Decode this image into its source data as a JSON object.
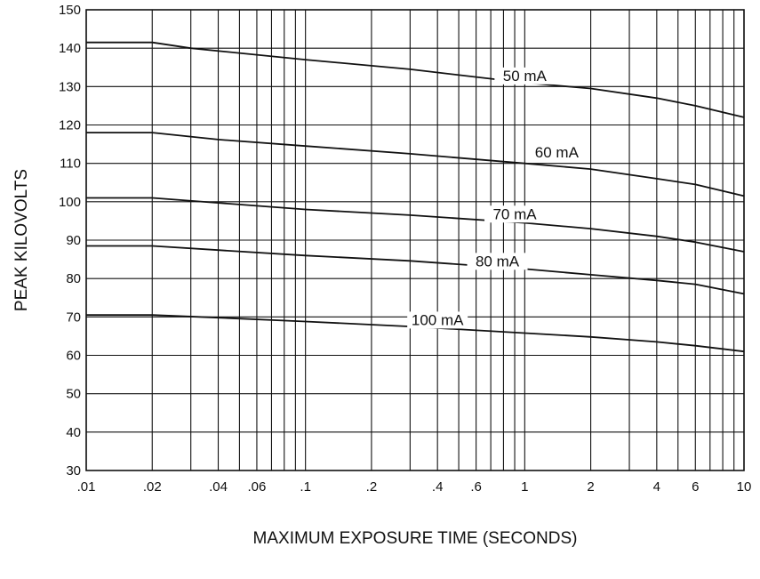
{
  "chart_data": {
    "type": "line",
    "title": "",
    "xlabel": "MAXIMUM EXPOSURE TIME (SECONDS)",
    "ylabel": "PEAK KILOVOLTS",
    "x_scale": "log",
    "xlim": [
      0.01,
      10
    ],
    "ylim": [
      30,
      150
    ],
    "grid": true,
    "legend": "inline labels on curves",
    "colors": {
      "line": "#111111",
      "grid": "#111111",
      "background": "#ffffff"
    },
    "x_ticks": [
      {
        "value": 0.01,
        "label": ".01"
      },
      {
        "value": 0.02,
        "label": ".02"
      },
      {
        "value": 0.04,
        "label": ".04"
      },
      {
        "value": 0.06,
        "label": ".06"
      },
      {
        "value": 0.1,
        "label": ".1"
      },
      {
        "value": 0.2,
        "label": ".2"
      },
      {
        "value": 0.4,
        "label": ".4"
      },
      {
        "value": 0.6,
        "label": ".6"
      },
      {
        "value": 1,
        "label": "1"
      },
      {
        "value": 2,
        "label": "2"
      },
      {
        "value": 4,
        "label": "4"
      },
      {
        "value": 6,
        "label": "6"
      },
      {
        "value": 10,
        "label": "10"
      }
    ],
    "x_gridlines": [
      0.01,
      0.02,
      0.03,
      0.04,
      0.05,
      0.06,
      0.07,
      0.08,
      0.09,
      0.1,
      0.2,
      0.3,
      0.4,
      0.5,
      0.6,
      0.7,
      0.8,
      0.9,
      1,
      2,
      3,
      4,
      5,
      6,
      7,
      8,
      9,
      10
    ],
    "y_ticks": [
      {
        "value": 30,
        "label": "30"
      },
      {
        "value": 40,
        "label": "40"
      },
      {
        "value": 50,
        "label": "50"
      },
      {
        "value": 60,
        "label": "60"
      },
      {
        "value": 70,
        "label": "70"
      },
      {
        "value": 80,
        "label": "80"
      },
      {
        "value": 90,
        "label": "90"
      },
      {
        "value": 100,
        "label": "100"
      },
      {
        "value": 110,
        "label": "110"
      },
      {
        "value": 120,
        "label": "120"
      },
      {
        "value": 130,
        "label": "130"
      },
      {
        "value": 140,
        "label": "140"
      },
      {
        "value": 150,
        "label": "150"
      }
    ],
    "series": [
      {
        "name": "50 mA",
        "label_at": [
          1,
          131.5
        ],
        "x": [
          0.01,
          0.02,
          0.03,
          0.1,
          0.3,
          1,
          2,
          4,
          6,
          10
        ],
        "y": [
          141.5,
          141.5,
          140,
          137,
          134.5,
          131,
          129.5,
          127,
          125,
          122
        ]
      },
      {
        "name": "60 mA",
        "label_at": [
          1.4,
          111.5
        ],
        "x": [
          0.01,
          0.02,
          0.04,
          0.1,
          0.3,
          1,
          2,
          4,
          6,
          10
        ],
        "y": [
          118,
          118,
          116.2,
          114.5,
          112.5,
          110,
          108.5,
          106,
          104.5,
          101.5
        ]
      },
      {
        "name": "70 mA",
        "label_at": [
          0.9,
          95.5
        ],
        "x": [
          0.01,
          0.02,
          0.04,
          0.1,
          0.3,
          1,
          2,
          4,
          6,
          10
        ],
        "y": [
          101,
          101,
          99.7,
          98,
          96.5,
          94.5,
          93,
          91,
          89.5,
          87
        ]
      },
      {
        "name": "80 mA",
        "label_at": [
          0.75,
          83.2
        ],
        "x": [
          0.01,
          0.02,
          0.04,
          0.1,
          0.3,
          1,
          2,
          4,
          6,
          10
        ],
        "y": [
          88.5,
          88.5,
          87.4,
          86,
          84.6,
          82.5,
          81,
          79.5,
          78.5,
          76
        ]
      },
      {
        "name": "100 mA",
        "label_at": [
          0.4,
          67.9
        ],
        "x": [
          0.01,
          0.02,
          0.04,
          0.1,
          0.3,
          1,
          2,
          4,
          6,
          10
        ],
        "y": [
          70.5,
          70.5,
          69.8,
          68.8,
          67.5,
          65.8,
          64.8,
          63.5,
          62.5,
          61
        ]
      }
    ]
  }
}
